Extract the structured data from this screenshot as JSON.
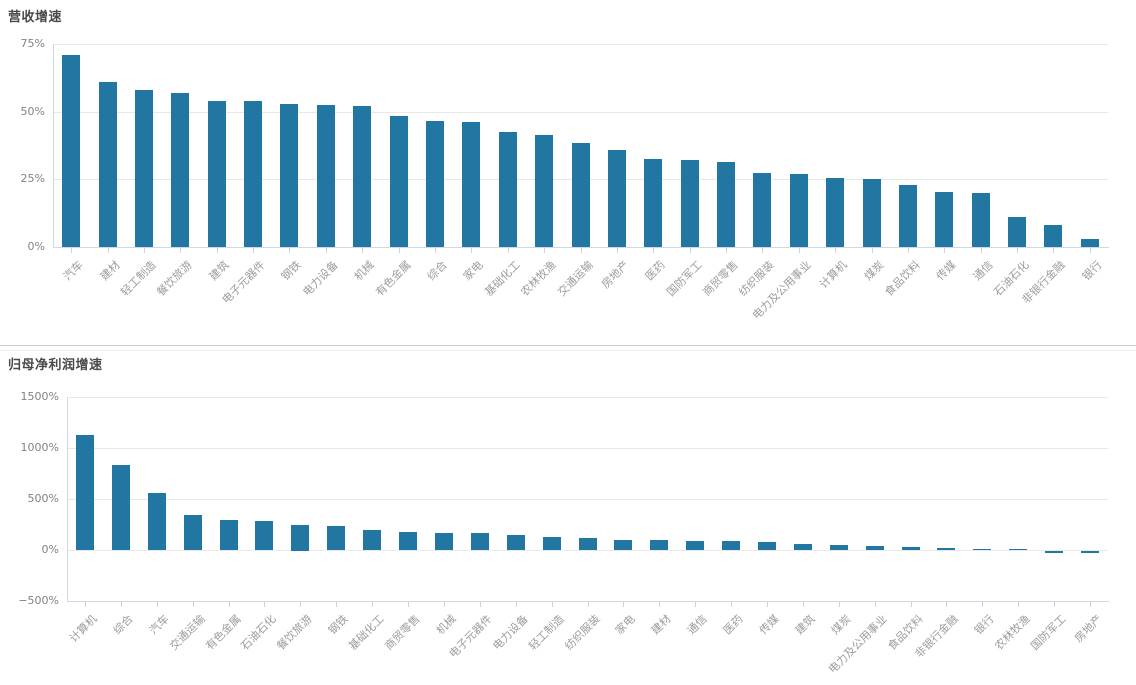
{
  "colors": {
    "bar": "#2277a2",
    "grid": "#e8e8e8",
    "axis": "#cdd9e4",
    "tick_label": "#828282",
    "category_label": "#9c9c9c",
    "title": "#4a4a4a",
    "divider_dark": "#cccccc",
    "divider_light": "#efefef"
  },
  "chart_data": [
    {
      "type": "bar",
      "title": "营收增速",
      "unit": "%",
      "grid": true,
      "legend_position": "none",
      "ylim": [
        0,
        75
      ],
      "yticks": [
        {
          "value": 0,
          "label": "0%"
        },
        {
          "value": 25,
          "label": "25%"
        },
        {
          "value": 50,
          "label": "50%"
        },
        {
          "value": 75,
          "label": "75%"
        }
      ],
      "categories": [
        "汽车",
        "建材",
        "轻工制造",
        "餐饮旅游",
        "建筑",
        "电子元器件",
        "钢铁",
        "电力设备",
        "机械",
        "有色金属",
        "综合",
        "家电",
        "基础化工",
        "农林牧渔",
        "交通运输",
        "房地产",
        "医药",
        "国防军工",
        "商贸零售",
        "纺织服装",
        "电力及公用事业",
        "计算机",
        "煤炭",
        "食品饮料",
        "传媒",
        "通信",
        "石油石化",
        "非银行金融",
        "银行"
      ],
      "values": [
        71,
        61,
        58,
        57,
        54,
        54,
        53,
        52.5,
        52,
        48.5,
        46.5,
        46,
        42.5,
        41.5,
        38.5,
        36,
        32.5,
        32,
        31.5,
        27.5,
        27,
        25.5,
        25,
        23,
        20.5,
        20,
        11,
        8,
        3
      ]
    },
    {
      "type": "bar",
      "title": "归母净利润增速",
      "unit": "%",
      "grid": true,
      "legend_position": "none",
      "ylim": [
        -500,
        1500
      ],
      "yticks": [
        {
          "value": -500,
          "label": "−500%"
        },
        {
          "value": 0,
          "label": "0%"
        },
        {
          "value": 500,
          "label": "500%"
        },
        {
          "value": 1000,
          "label": "1000%"
        },
        {
          "value": 1500,
          "label": "1500%"
        }
      ],
      "categories": [
        "计算机",
        "综合",
        "汽车",
        "交通运输",
        "有色金属",
        "石油石化",
        "餐饮旅游",
        "钢铁",
        "基础化工",
        "商贸零售",
        "机械",
        "电子元器件",
        "电力设备",
        "轻工制造",
        "纺织服装",
        "家电",
        "建材",
        "通信",
        "医药",
        "传媒",
        "建筑",
        "煤炭",
        "电力及公用事业",
        "食品饮料",
        "非银行金融",
        "银行",
        "农林牧渔",
        "国防军工",
        "房地产"
      ],
      "values": [
        1130,
        835,
        560,
        340,
        295,
        285,
        250,
        240,
        200,
        180,
        170,
        165,
        150,
        130,
        115,
        100,
        95,
        90,
        85,
        80,
        60,
        50,
        40,
        25,
        15,
        13,
        10,
        -15,
        -20
      ]
    }
  ]
}
